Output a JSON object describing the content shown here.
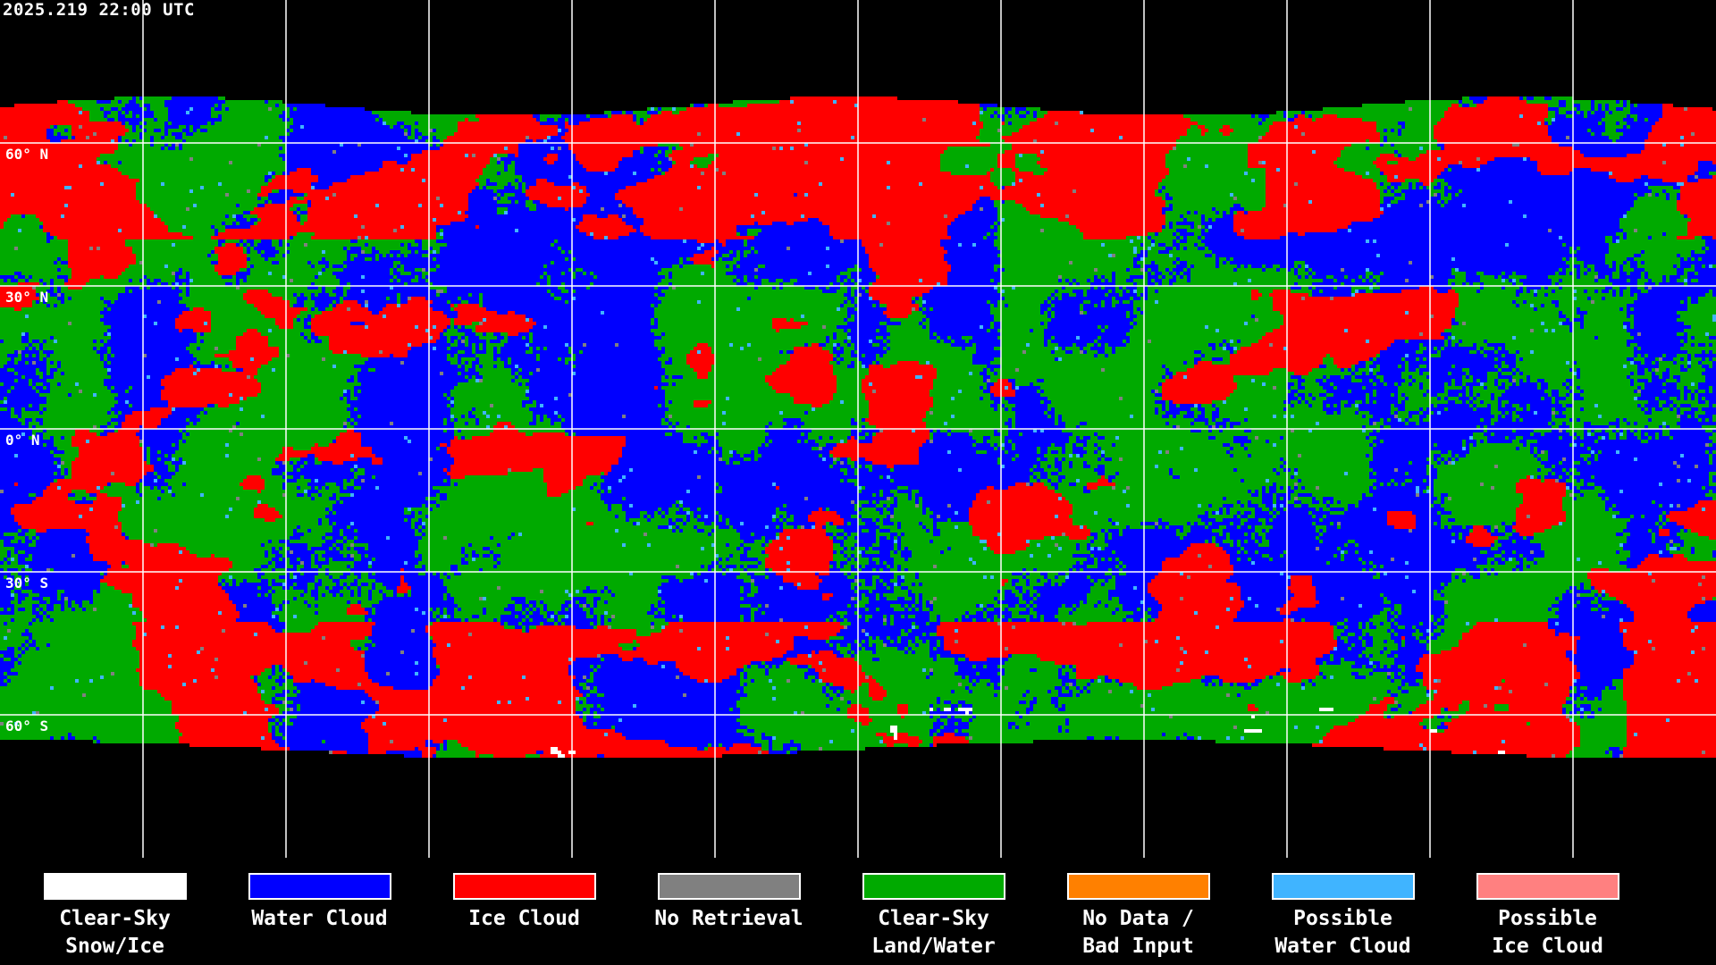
{
  "timestamp": "2025.219 22:00 UTC",
  "latitude_labels": [
    "60° N",
    "30° N",
    "0° N",
    "30° S",
    "60° S"
  ],
  "legend": [
    {
      "line1": "Clear-Sky",
      "line2": "Snow/Ice",
      "color": "#ffffff"
    },
    {
      "line1": "Water Cloud",
      "line2": "",
      "color": "#0000ff"
    },
    {
      "line1": "Ice Cloud",
      "line2": "",
      "color": "#ff0000"
    },
    {
      "line1": "No Retrieval",
      "line2": "",
      "color": "#808080"
    },
    {
      "line1": "Clear-Sky",
      "line2": "Land/Water",
      "color": "#00aa00"
    },
    {
      "line1": "No Data /",
      "line2": "Bad Input",
      "color": "#ff8000"
    },
    {
      "line1": "Possible",
      "line2": "Water Cloud",
      "color": "#40b4ff"
    },
    {
      "line1": "Possible",
      "line2": "Ice Cloud",
      "color": "#ff8080"
    }
  ]
}
